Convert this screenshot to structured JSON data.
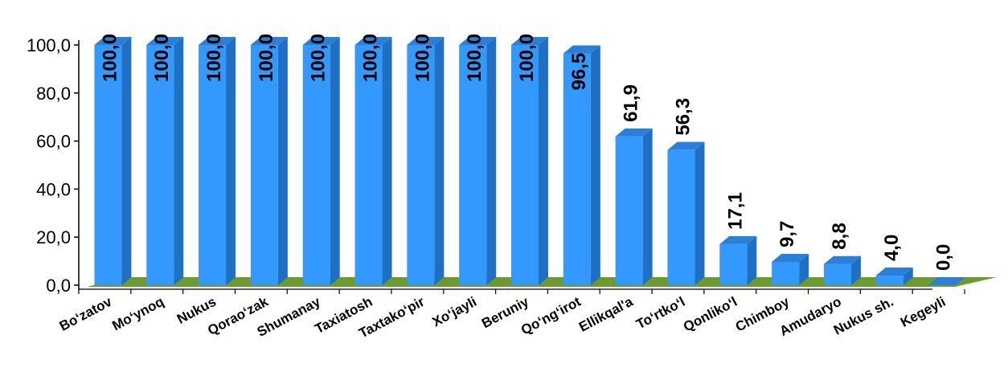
{
  "chart_data": {
    "type": "bar",
    "categories": [
      "Bo‘zatov",
      "Mo‘ynoq",
      "Nukus",
      "Qorao‘zak",
      "Shumanay",
      "Taxiatosh",
      "Taxtako‘pir",
      "Xo‘jayli",
      "Beruniy",
      "Qo‘ng‘irot",
      "Ellikqal'a",
      "To‘rtko‘l",
      "Qonliko‘l",
      "Chimboy",
      "Amudaryo",
      "Nukus sh.",
      "Kegeyli"
    ],
    "values": [
      100.0,
      100.0,
      100.0,
      100.0,
      100.0,
      100.0,
      100.0,
      100.0,
      100.0,
      96.5,
      61.9,
      56.3,
      17.1,
      9.7,
      8.8,
      4.0,
      0.0
    ],
    "data_labels": [
      "100,0",
      "100,0",
      "100,0",
      "100,0",
      "100,0",
      "100,0",
      "100,0",
      "100,0",
      "100,0",
      "96,5",
      "61,9",
      "56,3",
      "17,1",
      "9,7",
      "8,8",
      "4,0",
      "0,0"
    ],
    "yticks": [
      0,
      20,
      40,
      60,
      80,
      100
    ],
    "ytick_labels": [
      "0,0",
      "20,0",
      "40,0",
      "60,0",
      "80,0",
      "100,0"
    ],
    "ylim": [
      0,
      100
    ],
    "title": "",
    "xlabel": "",
    "ylabel": "",
    "grid": false,
    "legend": false,
    "colors": {
      "bar_front": "#3399ff",
      "bar_side": "#1f6fc4",
      "bar_top": "#2b7fd6",
      "floor": "#6b9a2e",
      "axis": "#000000"
    }
  }
}
